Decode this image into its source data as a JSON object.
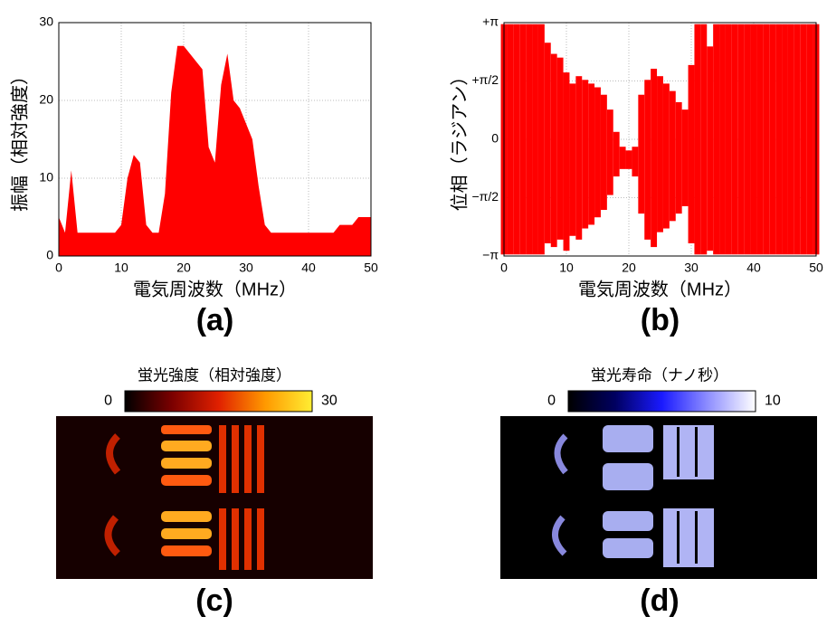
{
  "chart_data": [
    {
      "type": "area",
      "xlabel": "電気周波数（MHz）",
      "ylabel": "振幅（相対強度）",
      "panel_label": "(a)",
      "x": [
        0,
        1,
        2,
        3,
        4,
        5,
        6,
        7,
        8,
        9,
        10,
        11,
        12,
        13,
        14,
        15,
        16,
        17,
        18,
        19,
        20,
        21,
        22,
        23,
        24,
        25,
        26,
        27,
        28,
        29,
        30,
        31,
        32,
        33,
        34,
        35,
        36,
        37,
        38,
        39,
        40,
        41,
        42,
        43,
        44,
        45,
        46,
        47,
        48,
        49,
        50
      ],
      "values": [
        5,
        3,
        11,
        3,
        3,
        3,
        3,
        3,
        3,
        3,
        4,
        10,
        13,
        12,
        4,
        3,
        3,
        8,
        21,
        27,
        27,
        26,
        25,
        24,
        14,
        12,
        22,
        26,
        20,
        19,
        17,
        15,
        9,
        4,
        3,
        3,
        3,
        3,
        3,
        3,
        3,
        3,
        3,
        3,
        3,
        4,
        4,
        4,
        5,
        5,
        5
      ],
      "color": "#ff0000",
      "xlim": [
        0,
        50
      ],
      "ylim": [
        0,
        30
      ],
      "xticks": [
        0,
        10,
        20,
        30,
        40,
        50
      ],
      "yticks": [
        0,
        10,
        20,
        30
      ],
      "grid": true
    },
    {
      "type": "band",
      "xlabel": "電気周波数（MHz）",
      "ylabel": "位相（ラジアン）",
      "panel_label": "(b)",
      "x": [
        0,
        1,
        2,
        3,
        4,
        5,
        6,
        7,
        8,
        9,
        10,
        11,
        12,
        13,
        14,
        15,
        16,
        17,
        18,
        19,
        20,
        21,
        22,
        23,
        24,
        25,
        26,
        27,
        28,
        29,
        30,
        31,
        32,
        33,
        34,
        35,
        36,
        37,
        38,
        39,
        40,
        41,
        42,
        43,
        44,
        45,
        46,
        47,
        48,
        49,
        50
      ],
      "upper": [
        3.1,
        3.1,
        3.1,
        3.1,
        3.1,
        3.1,
        3.1,
        2.6,
        2.3,
        2.2,
        1.8,
        1.5,
        1.7,
        1.6,
        1.5,
        1.4,
        1.2,
        0.8,
        0.2,
        -0.2,
        -0.3,
        -0.2,
        1.2,
        1.6,
        1.9,
        1.7,
        1.5,
        1.3,
        1.0,
        0.8,
        2.0,
        3.1,
        3.1,
        2.5,
        3.1,
        3.1,
        3.1,
        3.1,
        3.1,
        3.1,
        3.1,
        3.1,
        3.1,
        3.1,
        3.1,
        3.1,
        3.1,
        3.1,
        3.1,
        3.1,
        3.1
      ],
      "lower": [
        -3.1,
        -3.1,
        -3.1,
        -3.1,
        -3.1,
        -3.1,
        -3.1,
        -2.8,
        -2.9,
        -2.7,
        -3.0,
        -2.6,
        -2.7,
        -2.4,
        -2.3,
        -2.1,
        -1.9,
        -1.5,
        -1.0,
        -0.8,
        -0.8,
        -1.0,
        -2.0,
        -2.7,
        -2.9,
        -2.5,
        -2.4,
        -2.2,
        -2.0,
        -1.8,
        -2.8,
        -3.1,
        -3.1,
        -3.0,
        -3.1,
        -3.1,
        -3.1,
        -3.1,
        -3.1,
        -3.1,
        -3.1,
        -3.1,
        -3.1,
        -3.1,
        -3.1,
        -3.1,
        -3.1,
        -3.1,
        -3.1,
        -3.1,
        -3.1
      ],
      "color": "#ff0000",
      "xlim": [
        0,
        50
      ],
      "ylim": [
        -3.14159,
        3.14159
      ],
      "xticks": [
        0,
        10,
        20,
        30,
        40,
        50
      ],
      "yticks": [
        {
          "value": -3.14159,
          "label": "−π"
        },
        {
          "value": -1.5708,
          "label": "−π/2"
        },
        0,
        {
          "value": 1.5708,
          "label": "+π/2"
        },
        {
          "value": 3.14159,
          "label": "+π"
        }
      ],
      "grid": true
    },
    {
      "type": "image",
      "title": "蛍光強度（相対強度）",
      "panel_label": "(c)",
      "clim": [
        0,
        30
      ],
      "cticks": [
        0,
        30
      ],
      "colormap": [
        "#000000",
        "#7a0000",
        "#e02000",
        "#ff9900",
        "#ffee33"
      ]
    },
    {
      "type": "image",
      "title": "蛍光寿命（ナノ秒）",
      "panel_label": "(d)",
      "clim": [
        0,
        10
      ],
      "cticks": [
        0,
        10
      ],
      "colormap": [
        "#000000",
        "#000060",
        "#1a1aff",
        "#9090ff",
        "#ffffff"
      ]
    }
  ]
}
